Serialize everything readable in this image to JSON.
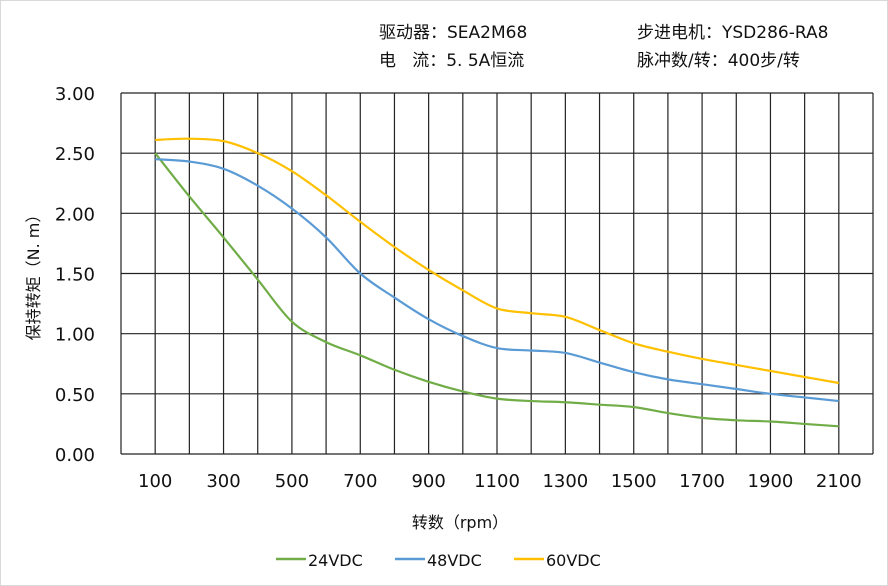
{
  "header": {
    "driver": "驱动器：SEA2M68",
    "current": "电   流：5. 5A恒流",
    "motor": "步进电机：YSD286-RA8",
    "pulses": "脉冲数/转：400步/转"
  },
  "chart_data": {
    "type": "line",
    "xlabel": "转数（rpm）",
    "ylabel": "保持转矩（N. m）",
    "xlim": [
      0,
      2200
    ],
    "ylim": [
      0,
      3
    ],
    "grid": true,
    "legend_placement": "bottom",
    "x_ticks": [
      "100",
      "300",
      "500",
      "700",
      "900",
      "1100",
      "1300",
      "1500",
      "1700",
      "1900",
      "2100"
    ],
    "y_ticks": [
      "0.00",
      "0.50",
      "1.00",
      "1.50",
      "2.00",
      "2.50",
      "3.00"
    ],
    "x": [
      100,
      200,
      300,
      400,
      500,
      600,
      700,
      800,
      900,
      1000,
      1100,
      1200,
      1300,
      1400,
      1500,
      1600,
      1700,
      1800,
      1900,
      2000,
      2100
    ],
    "series": [
      {
        "name": "24VDC",
        "color": "#70ad47",
        "values": [
          2.5,
          2.14,
          1.8,
          1.45,
          1.1,
          0.93,
          0.82,
          0.7,
          0.6,
          0.52,
          0.46,
          0.44,
          0.43,
          0.41,
          0.39,
          0.34,
          0.3,
          0.28,
          0.27,
          0.25,
          0.23
        ]
      },
      {
        "name": "48VDC",
        "color": "#5b9bd5",
        "values": [
          2.45,
          2.43,
          2.37,
          2.23,
          2.04,
          1.8,
          1.5,
          1.3,
          1.12,
          0.98,
          0.88,
          0.86,
          0.84,
          0.76,
          0.68,
          0.62,
          0.58,
          0.54,
          0.5,
          0.47,
          0.44
        ]
      },
      {
        "name": "60VDC",
        "color": "#ffc000",
        "values": [
          2.61,
          2.62,
          2.6,
          2.5,
          2.35,
          2.15,
          1.93,
          1.72,
          1.53,
          1.36,
          1.21,
          1.17,
          1.14,
          1.03,
          0.92,
          0.85,
          0.79,
          0.74,
          0.69,
          0.64,
          0.59
        ]
      }
    ]
  }
}
